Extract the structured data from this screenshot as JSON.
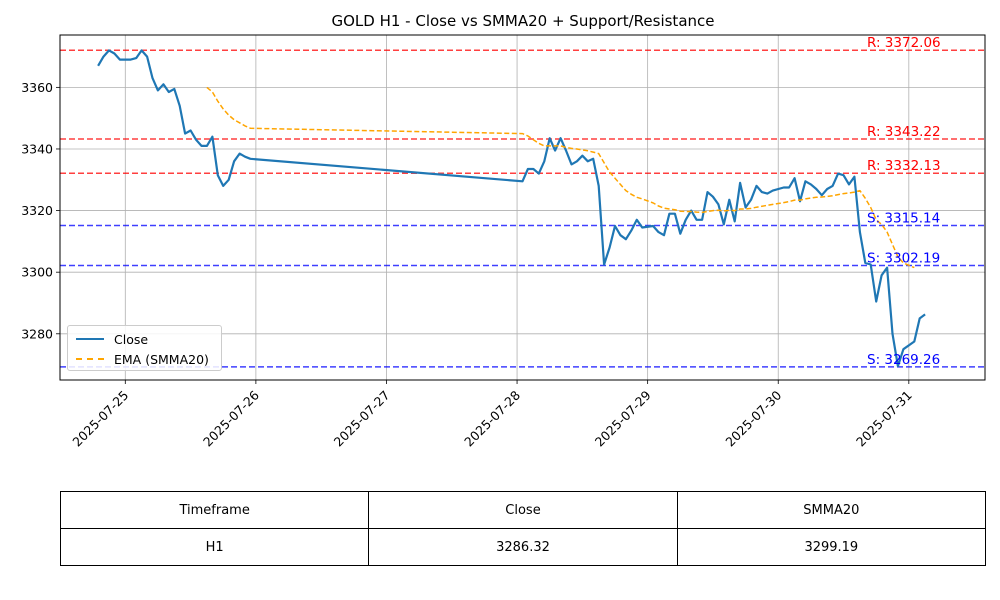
{
  "chart_data": {
    "type": "line",
    "title": "GOLD H1 - Close vs SMMA20 + Support/Resistance",
    "xlabel": "",
    "ylabel": "",
    "xlim": [
      "2025-07-24 12:00",
      "2025-07-31 14:00"
    ],
    "ylim": [
      3265,
      3377
    ],
    "x_ticks": [
      "2025-07-25",
      "2025-07-26",
      "2025-07-27",
      "2025-07-28",
      "2025-07-29",
      "2025-07-30",
      "2025-07-31"
    ],
    "y_ticks": [
      3280,
      3300,
      3320,
      3340,
      3360
    ],
    "grid": true,
    "legend_position": "lower-left",
    "series": [
      {
        "name": "Close",
        "color": "#1f77b4",
        "style": "solid",
        "points": [
          [
            "2025-07-24 19:00",
            3367
          ],
          [
            "2025-07-24 20:00",
            3370
          ],
          [
            "2025-07-24 21:00",
            3372
          ],
          [
            "2025-07-24 22:00",
            3371
          ],
          [
            "2025-07-24 23:00",
            3369
          ],
          [
            "2025-07-25 01:00",
            3369
          ],
          [
            "2025-07-25 02:00",
            3369.5
          ],
          [
            "2025-07-25 03:00",
            3372
          ],
          [
            "2025-07-25 04:00",
            3370
          ],
          [
            "2025-07-25 05:00",
            3363
          ],
          [
            "2025-07-25 06:00",
            3359
          ],
          [
            "2025-07-25 07:00",
            3361
          ],
          [
            "2025-07-25 08:00",
            3358.5
          ],
          [
            "2025-07-25 09:00",
            3359.5
          ],
          [
            "2025-07-25 10:00",
            3354
          ],
          [
            "2025-07-25 11:00",
            3345
          ],
          [
            "2025-07-25 12:00",
            3346
          ],
          [
            "2025-07-25 13:00",
            3343
          ],
          [
            "2025-07-25 14:00",
            3341
          ],
          [
            "2025-07-25 15:00",
            3341
          ],
          [
            "2025-07-25 16:00",
            3344
          ],
          [
            "2025-07-25 17:00",
            3331.5
          ],
          [
            "2025-07-25 18:00",
            3328
          ],
          [
            "2025-07-25 19:00",
            3330
          ],
          [
            "2025-07-25 20:00",
            3336
          ],
          [
            "2025-07-25 21:00",
            3338.5
          ],
          [
            "2025-07-25 22:00",
            3337.5
          ],
          [
            "2025-07-25 23:00",
            3336.8
          ],
          [
            "2025-07-28 01:00",
            3329.5
          ],
          [
            "2025-07-28 02:00",
            3333.5
          ],
          [
            "2025-07-28 03:00",
            3333.5
          ],
          [
            "2025-07-28 04:00",
            3332
          ],
          [
            "2025-07-28 05:00",
            3336
          ],
          [
            "2025-07-28 06:00",
            3343.5
          ],
          [
            "2025-07-28 07:00",
            3339.5
          ],
          [
            "2025-07-28 08:00",
            3343.5
          ],
          [
            "2025-07-28 09:00",
            3339.5
          ],
          [
            "2025-07-28 10:00",
            3335
          ],
          [
            "2025-07-28 11:00",
            3336
          ],
          [
            "2025-07-28 12:00",
            3337.8
          ],
          [
            "2025-07-28 13:00",
            3336
          ],
          [
            "2025-07-28 14:00",
            3336.8
          ],
          [
            "2025-07-28 15:00",
            3328
          ],
          [
            "2025-07-28 16:00",
            3302.5
          ],
          [
            "2025-07-28 17:00",
            3308
          ],
          [
            "2025-07-28 18:00",
            3315
          ],
          [
            "2025-07-28 19:00",
            3312
          ],
          [
            "2025-07-28 20:00",
            3310.7
          ],
          [
            "2025-07-28 21:00",
            3313.5
          ],
          [
            "2025-07-28 22:00",
            3317
          ],
          [
            "2025-07-28 23:00",
            3314.5
          ],
          [
            "2025-07-29 01:00",
            3315
          ],
          [
            "2025-07-29 02:00",
            3313
          ],
          [
            "2025-07-29 03:00",
            3312
          ],
          [
            "2025-07-29 04:00",
            3319
          ],
          [
            "2025-07-29 05:00",
            3319
          ],
          [
            "2025-07-29 06:00",
            3312.5
          ],
          [
            "2025-07-29 07:00",
            3317
          ],
          [
            "2025-07-29 08:00",
            3320
          ],
          [
            "2025-07-29 09:00",
            3317
          ],
          [
            "2025-07-29 10:00",
            3317
          ],
          [
            "2025-07-29 11:00",
            3326
          ],
          [
            "2025-07-29 12:00",
            3324.5
          ],
          [
            "2025-07-29 13:00",
            3322
          ],
          [
            "2025-07-29 14:00",
            3315.5
          ],
          [
            "2025-07-29 15:00",
            3323.5
          ],
          [
            "2025-07-29 16:00",
            3316.5
          ],
          [
            "2025-07-29 17:00",
            3329
          ],
          [
            "2025-07-29 18:00",
            3321
          ],
          [
            "2025-07-29 19:00",
            3323.5
          ],
          [
            "2025-07-29 20:00",
            3328
          ],
          [
            "2025-07-29 21:00",
            3326
          ],
          [
            "2025-07-29 22:00",
            3325.5
          ],
          [
            "2025-07-29 23:00",
            3326.5
          ],
          [
            "2025-07-30 01:00",
            3327.5
          ],
          [
            "2025-07-30 02:00",
            3327.5
          ],
          [
            "2025-07-30 03:00",
            3330.5
          ],
          [
            "2025-07-30 04:00",
            3323
          ],
          [
            "2025-07-30 05:00",
            3329.5
          ],
          [
            "2025-07-30 06:00",
            3328.5
          ],
          [
            "2025-07-30 07:00",
            3327
          ],
          [
            "2025-07-30 08:00",
            3325
          ],
          [
            "2025-07-30 09:00",
            3327
          ],
          [
            "2025-07-30 10:00",
            3328
          ],
          [
            "2025-07-30 11:00",
            3332
          ],
          [
            "2025-07-30 12:00",
            3331.5
          ],
          [
            "2025-07-30 13:00",
            3328.5
          ],
          [
            "2025-07-30 14:00",
            3331
          ],
          [
            "2025-07-30 15:00",
            3313
          ],
          [
            "2025-07-30 16:00",
            3303
          ],
          [
            "2025-07-30 17:00",
            3302.5
          ],
          [
            "2025-07-30 18:00",
            3290.5
          ],
          [
            "2025-07-30 19:00",
            3299
          ],
          [
            "2025-07-30 20:00",
            3301.5
          ],
          [
            "2025-07-30 21:00",
            3280
          ],
          [
            "2025-07-30 22:00",
            3269.5
          ],
          [
            "2025-07-30 23:00",
            3275
          ],
          [
            "2025-07-31 01:00",
            3277.5
          ],
          [
            "2025-07-31 02:00",
            3285
          ],
          [
            "2025-07-31 03:00",
            3286.3
          ]
        ]
      },
      {
        "name": "EMA (SMMA20)",
        "color": "#ffa500",
        "style": "dashed",
        "points": [
          [
            "2025-07-25 15:00",
            3360
          ],
          [
            "2025-07-25 16:00",
            3358.5
          ],
          [
            "2025-07-25 17:00",
            3355.5
          ],
          [
            "2025-07-25 18:00",
            3353
          ],
          [
            "2025-07-25 19:00",
            3351
          ],
          [
            "2025-07-25 20:00",
            3349.5
          ],
          [
            "2025-07-25 21:00",
            3348.5
          ],
          [
            "2025-07-25 22:00",
            3347.5
          ],
          [
            "2025-07-25 23:00",
            3346.7
          ],
          [
            "2025-07-28 01:00",
            3345
          ],
          [
            "2025-07-28 02:00",
            3344.2
          ],
          [
            "2025-07-28 03:00",
            3343
          ],
          [
            "2025-07-28 04:00",
            3341.8
          ],
          [
            "2025-07-28 05:00",
            3341
          ],
          [
            "2025-07-28 06:00",
            3341
          ],
          [
            "2025-07-28 07:00",
            3341
          ],
          [
            "2025-07-28 08:00",
            3341
          ],
          [
            "2025-07-28 09:00",
            3340.5
          ],
          [
            "2025-07-28 10:00",
            3340.2
          ],
          [
            "2025-07-28 11:00",
            3340
          ],
          [
            "2025-07-28 12:00",
            3339.7
          ],
          [
            "2025-07-28 13:00",
            3339.4
          ],
          [
            "2025-07-28 14:00",
            3339
          ],
          [
            "2025-07-28 15:00",
            3338.5
          ],
          [
            "2025-07-28 16:00",
            3335.5
          ],
          [
            "2025-07-28 17:00",
            3332.5
          ],
          [
            "2025-07-28 18:00",
            3330.5
          ],
          [
            "2025-07-28 19:00",
            3328.5
          ],
          [
            "2025-07-28 20:00",
            3326.5
          ],
          [
            "2025-07-28 21:00",
            3325.3
          ],
          [
            "2025-07-28 22:00",
            3324.3
          ],
          [
            "2025-07-28 23:00",
            3323.8
          ],
          [
            "2025-07-29 01:00",
            3322.5
          ],
          [
            "2025-07-29 02:00",
            3321.5
          ],
          [
            "2025-07-29 03:00",
            3320.8
          ],
          [
            "2025-07-29 04:00",
            3320.5
          ],
          [
            "2025-07-29 05:00",
            3320.3
          ],
          [
            "2025-07-29 06:00",
            3319.8
          ],
          [
            "2025-07-29 07:00",
            3319.7
          ],
          [
            "2025-07-29 08:00",
            3319.7
          ],
          [
            "2025-07-29 09:00",
            3319.5
          ],
          [
            "2025-07-29 10:00",
            3319.4
          ],
          [
            "2025-07-29 11:00",
            3319.7
          ],
          [
            "2025-07-29 12:00",
            3320
          ],
          [
            "2025-07-29 13:00",
            3320.1
          ],
          [
            "2025-07-29 14:00",
            3319.9
          ],
          [
            "2025-07-29 15:00",
            3320.1
          ],
          [
            "2025-07-29 16:00",
            3320
          ],
          [
            "2025-07-29 17:00",
            3320.5
          ],
          [
            "2025-07-29 18:00",
            3320.5
          ],
          [
            "2025-07-29 19:00",
            3320.7
          ],
          [
            "2025-07-29 20:00",
            3321.1
          ],
          [
            "2025-07-29 21:00",
            3321.4
          ],
          [
            "2025-07-29 22:00",
            3321.7
          ],
          [
            "2025-07-29 23:00",
            3322
          ],
          [
            "2025-07-30 01:00",
            3322.6
          ],
          [
            "2025-07-30 02:00",
            3322.9
          ],
          [
            "2025-07-30 03:00",
            3323.4
          ],
          [
            "2025-07-30 04:00",
            3323.4
          ],
          [
            "2025-07-30 05:00",
            3323.8
          ],
          [
            "2025-07-30 06:00",
            3324.1
          ],
          [
            "2025-07-30 07:00",
            3324.3
          ],
          [
            "2025-07-30 08:00",
            3324.4
          ],
          [
            "2025-07-30 09:00",
            3324.6
          ],
          [
            "2025-07-30 10:00",
            3324.8
          ],
          [
            "2025-07-30 11:00",
            3325.2
          ],
          [
            "2025-07-30 12:00",
            3325.5
          ],
          [
            "2025-07-30 13:00",
            3325.7
          ],
          [
            "2025-07-30 14:00",
            3326
          ],
          [
            "2025-07-30 15:00",
            3326.5
          ],
          [
            "2025-07-30 16:00",
            3324
          ],
          [
            "2025-07-30 17:00",
            3321
          ],
          [
            "2025-07-30 18:00",
            3317
          ],
          [
            "2025-07-30 19:00",
            3315.5
          ],
          [
            "2025-07-30 20:00",
            3313
          ],
          [
            "2025-07-30 21:00",
            3309
          ],
          [
            "2025-07-30 22:00",
            3305
          ],
          [
            "2025-07-30 23:00",
            3303
          ],
          [
            "2025-07-31 01:00",
            3301.5
          ]
        ]
      }
    ],
    "levels": [
      {
        "kind": "resistance",
        "label": "R: 3372.06",
        "value": 3372.06,
        "color": "#ff0000"
      },
      {
        "kind": "resistance",
        "label": "R: 3343.22",
        "value": 3343.22,
        "color": "#ff0000"
      },
      {
        "kind": "resistance",
        "label": "R: 3332.13",
        "value": 3332.13,
        "color": "#ff0000"
      },
      {
        "kind": "support",
        "label": "S: 3315.14",
        "value": 3315.14,
        "color": "#0000ff"
      },
      {
        "kind": "support",
        "label": "S: 3302.19",
        "value": 3302.19,
        "color": "#0000ff"
      },
      {
        "kind": "support",
        "label": "S: 3269.26",
        "value": 3269.26,
        "color": "#0000ff"
      }
    ],
    "legend": [
      "Close",
      "EMA (SMMA20)"
    ]
  },
  "table": {
    "headers": [
      "Timeframe",
      "Close",
      "SMMA20"
    ],
    "row": [
      "H1",
      "3286.32",
      "3299.19"
    ]
  }
}
